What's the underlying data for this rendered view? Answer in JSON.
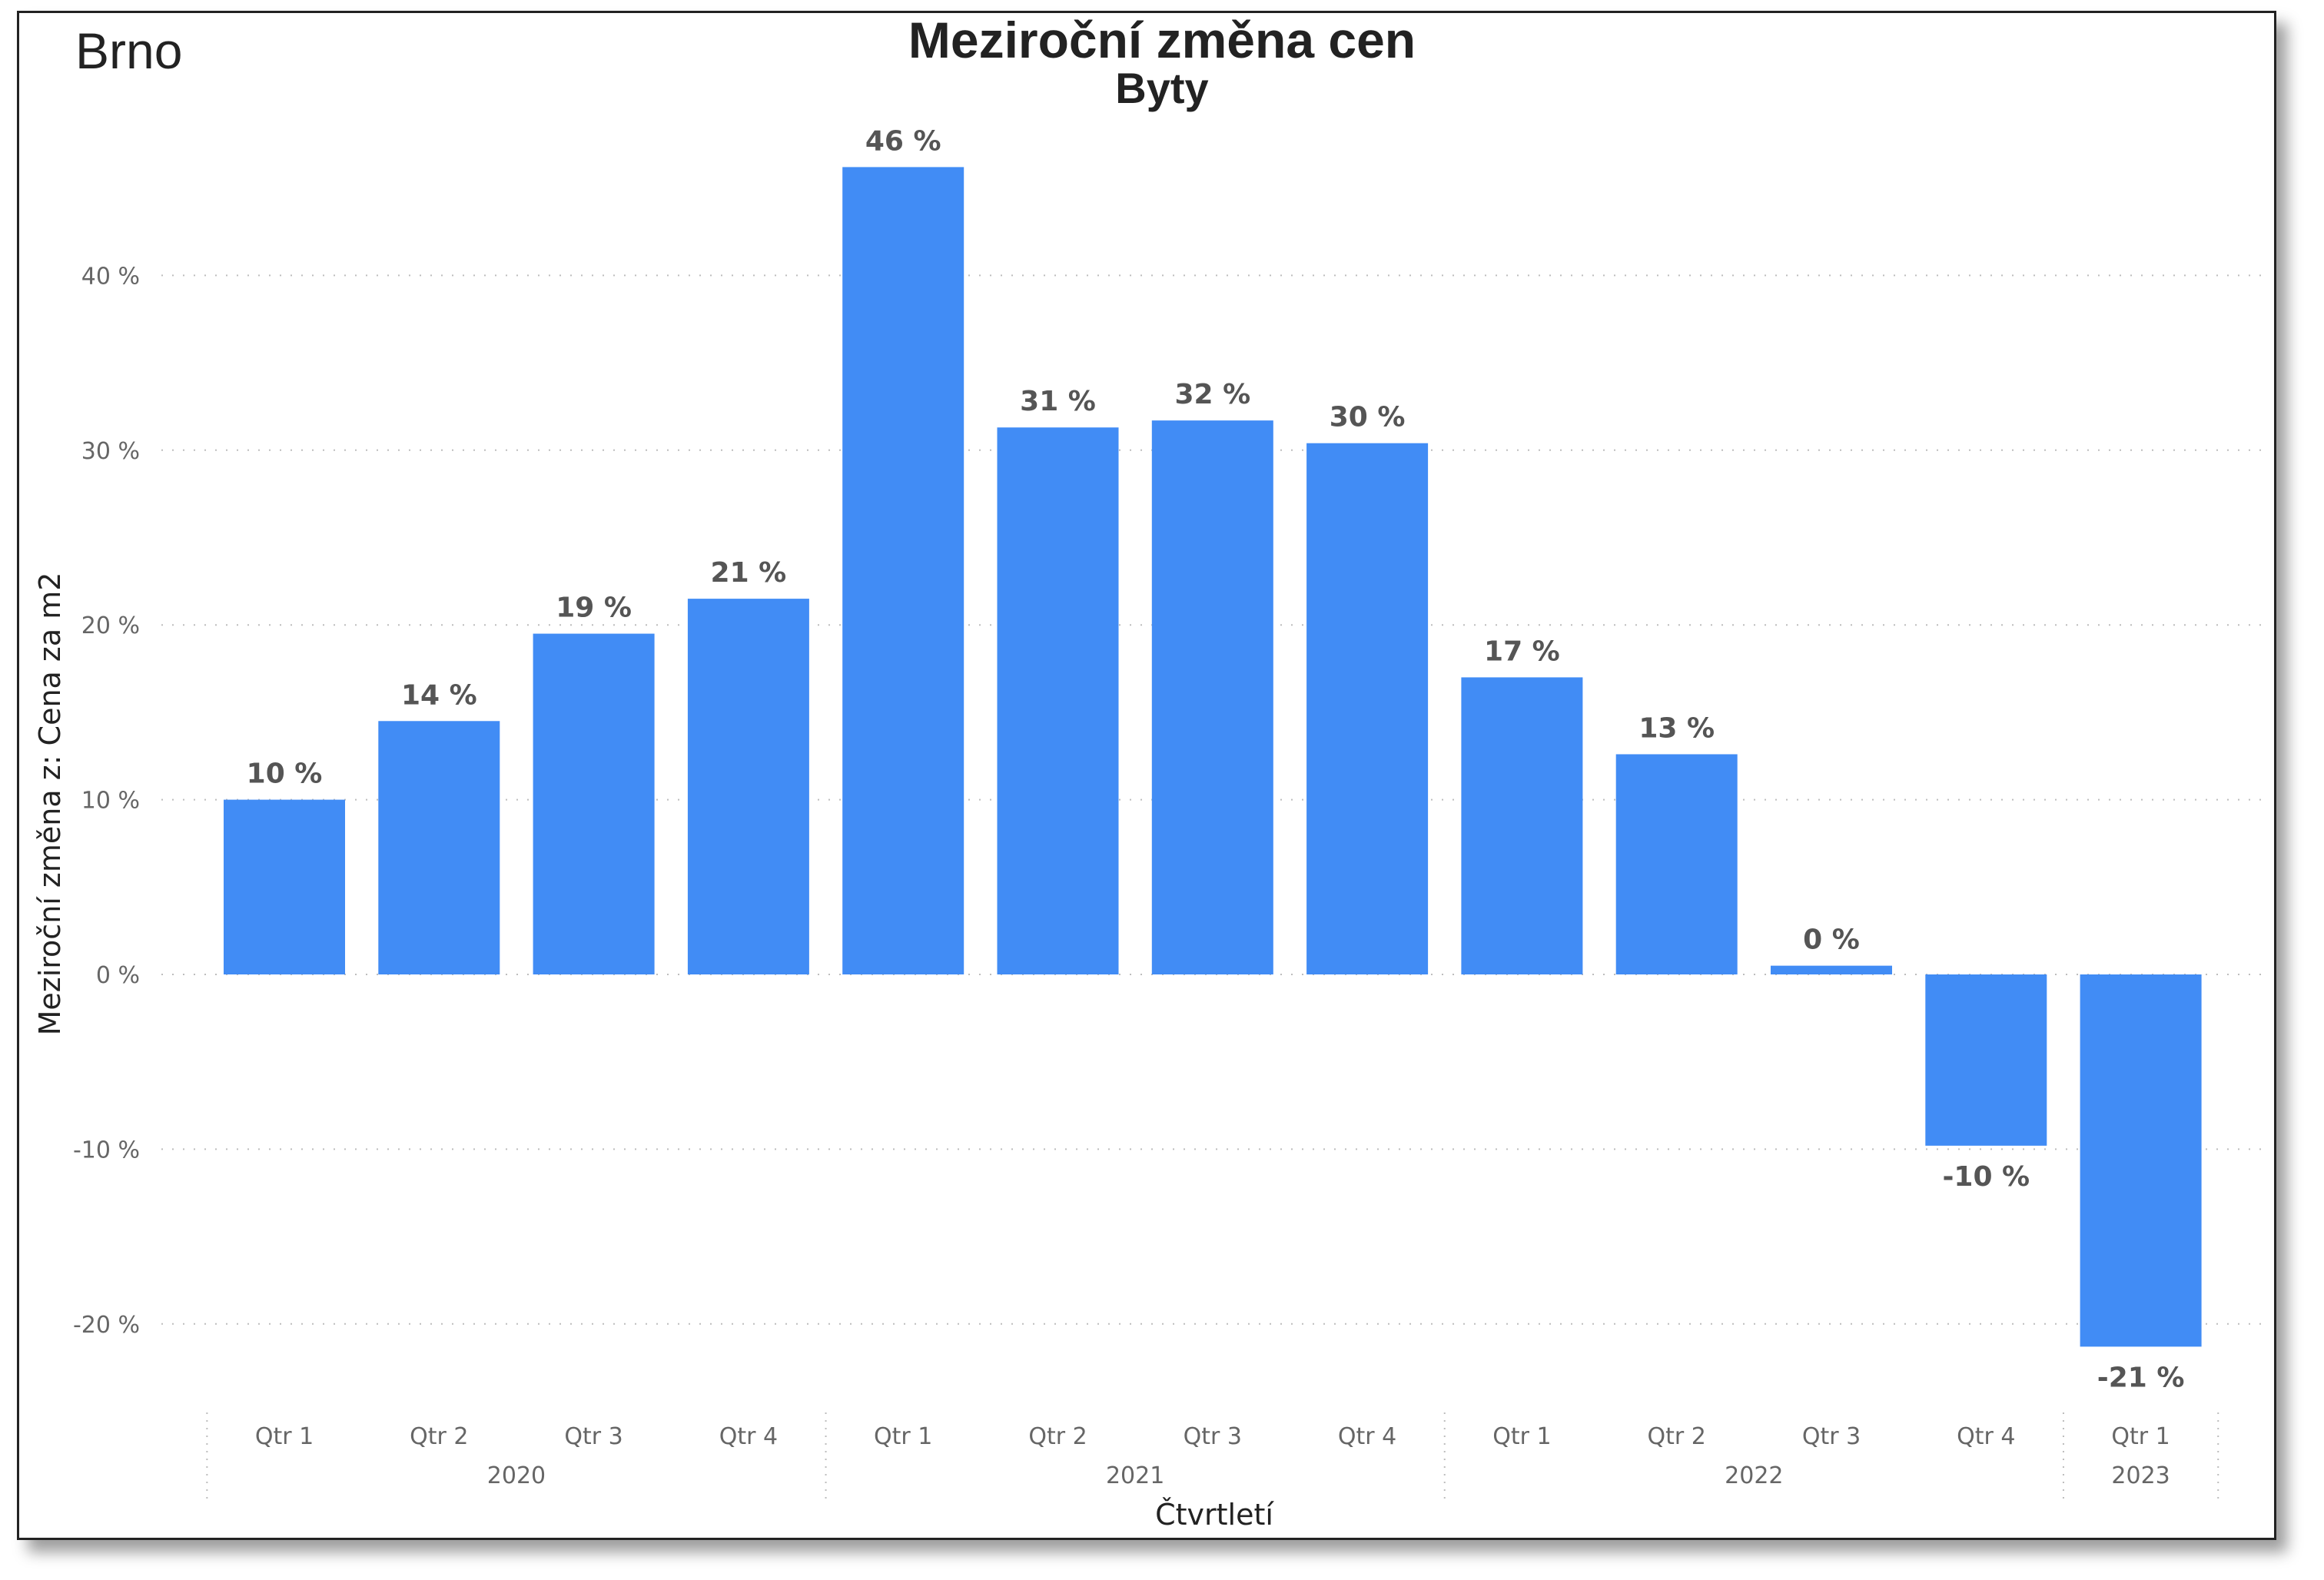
{
  "header": {
    "city": "Brno",
    "title": "Meziroční změna cen",
    "subtitle": "Byty"
  },
  "colors": {
    "bar": "#418CF5",
    "grid": "#BDBDBD",
    "tick_text": "#666666",
    "label_text": "#555555"
  },
  "chart_data": {
    "type": "bar",
    "title": "Meziroční změna cen",
    "subtitle": "Byty",
    "xlabel": "Čtvrtletí",
    "ylabel": "Meziroční změna z: Cena za m2",
    "ylim": [
      -25,
      47
    ],
    "yticks": [
      40,
      30,
      20,
      10,
      0,
      -10,
      -20
    ],
    "ytick_labels": [
      "40 %",
      "30 %",
      "20 %",
      "10 %",
      "0 %",
      "-10 %",
      "-20 %"
    ],
    "grid": true,
    "legend": "none",
    "categories": [
      "Qtr 1",
      "Qtr 2",
      "Qtr 3",
      "Qtr 4",
      "Qtr 1",
      "Qtr 2",
      "Qtr 3",
      "Qtr 4",
      "Qtr 1",
      "Qtr 2",
      "Qtr 3",
      "Qtr 4",
      "Qtr 1"
    ],
    "years": [
      {
        "label": "2020",
        "count": 4
      },
      {
        "label": "2021",
        "count": 4
      },
      {
        "label": "2022",
        "count": 4
      },
      {
        "label": "2023",
        "count": 1
      }
    ],
    "values": [
      10.0,
      14.5,
      19.5,
      21.5,
      46.2,
      31.3,
      31.7,
      30.4,
      17.0,
      12.6,
      0.5,
      -9.8,
      -21.3
    ],
    "data_labels": [
      "10 %",
      "14 %",
      "19 %",
      "21 %",
      "46 %",
      "31 %",
      "32 %",
      "30 %",
      "17 %",
      "13 %",
      "0 %",
      "-10 %",
      "-21 %"
    ]
  }
}
